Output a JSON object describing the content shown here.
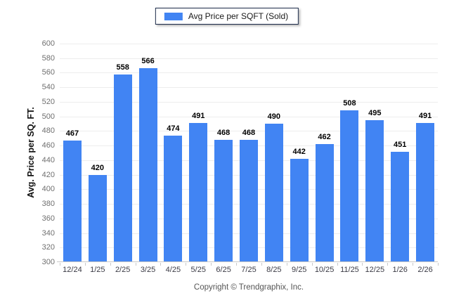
{
  "legend": {
    "label": "Avg Price per SQFT (Sold)",
    "swatch_color": "#4184f3"
  },
  "footer": {
    "copyright": "Copyright © Trendgraphix, Inc."
  },
  "colors": {
    "bar": "#4184f3",
    "grid": "#ededed",
    "axis_line": "#c8c8c8",
    "y_tick_text": "#6f6f6f",
    "x_tick_text": "#3b3b45",
    "value_label_text": "#000000",
    "legend_border": "#1c2b4a"
  },
  "chart_data": {
    "type": "bar",
    "categories": [
      "12/24",
      "1/25",
      "2/25",
      "3/25",
      "4/25",
      "5/25",
      "6/25",
      "7/25",
      "8/25",
      "9/25",
      "10/25",
      "11/25",
      "12/25",
      "1/26",
      "2/26"
    ],
    "values": [
      467,
      420,
      558,
      566,
      474,
      491,
      468,
      468,
      490,
      442,
      462,
      508,
      495,
      451,
      491
    ],
    "title": "",
    "xlabel": "",
    "ylabel": "Avg. Price per SQ. FT.",
    "ylim": [
      300,
      600
    ],
    "ytick_step": 20,
    "grid": "horizontal",
    "legend_entries": [
      "Avg Price per SQFT (Sold)"
    ],
    "legend_position": "top-center",
    "value_labels": true
  }
}
